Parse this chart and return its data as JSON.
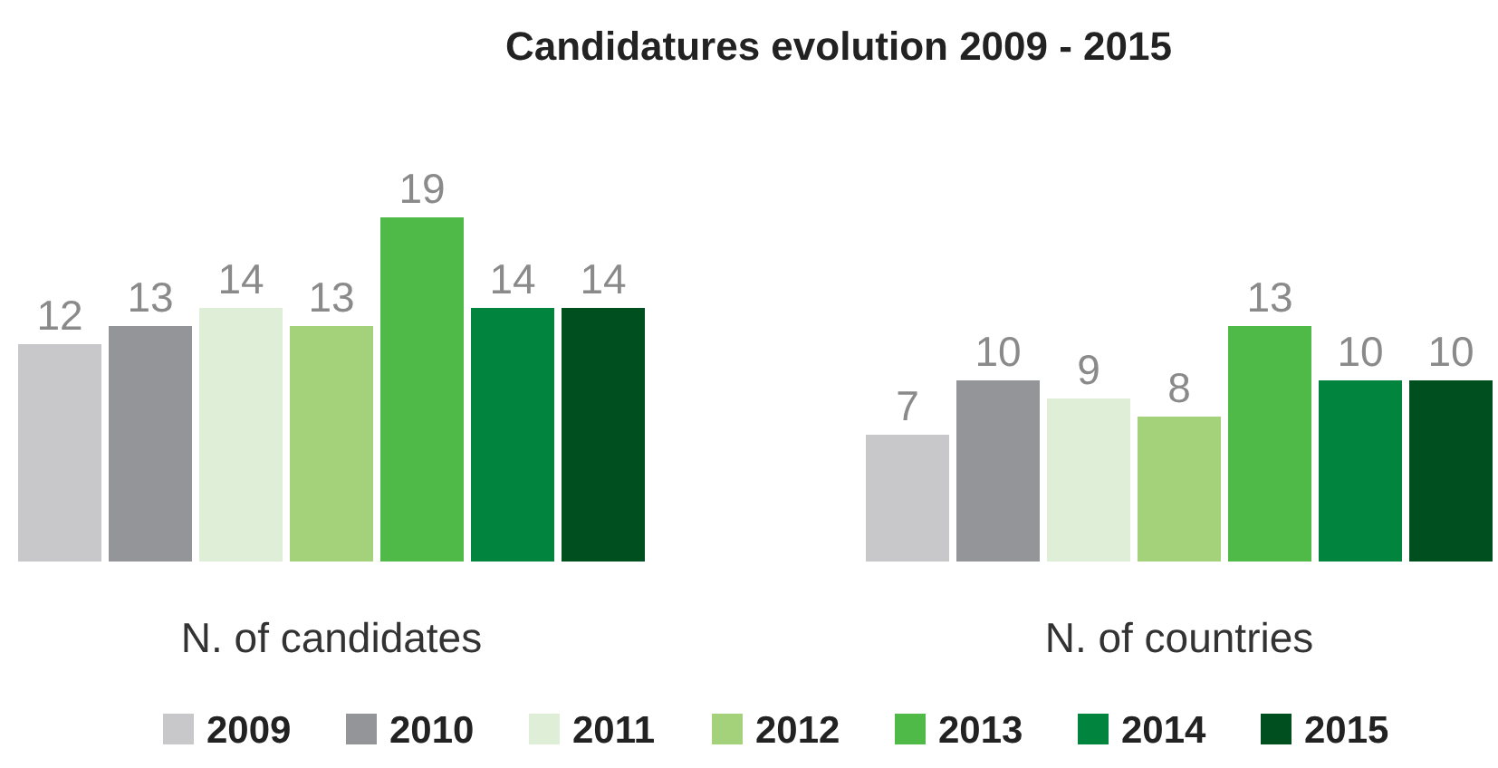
{
  "chart_data": {
    "type": "bar",
    "title": "Candidatures evolution 2009 - 2015",
    "categories": [
      "N. of candidates",
      "N. of countries"
    ],
    "data_labels": true,
    "legend": "bottom",
    "series": [
      {
        "name": "2009",
        "color": "#c8c8ca",
        "values": [
          12,
          7
        ]
      },
      {
        "name": "2010",
        "color": "#939598",
        "values": [
          13,
          10
        ]
      },
      {
        "name": "2011",
        "color": "#dfeed6",
        "values": [
          14,
          9
        ]
      },
      {
        "name": "2012",
        "color": "#a3d27b",
        "values": [
          13,
          8
        ]
      },
      {
        "name": "2013",
        "color": "#4fba48",
        "values": [
          19,
          13
        ]
      },
      {
        "name": "2014",
        "color": "#00843e",
        "values": [
          14,
          10
        ]
      },
      {
        "name": "2015",
        "color": "#004f1f",
        "values": [
          14,
          10
        ]
      }
    ]
  }
}
